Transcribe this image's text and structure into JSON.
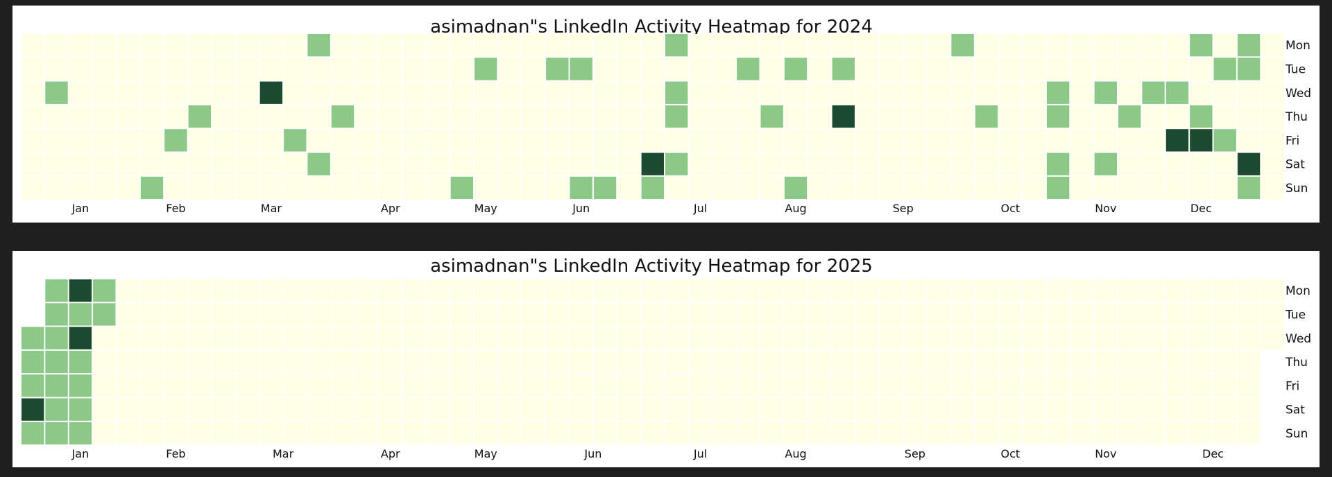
{
  "chart_data": [
    {
      "type": "heatmap",
      "title": "asimadnan\"s LinkedIn Activity Heatmap for 2024",
      "year": 2024,
      "day_labels": [
        "Mon",
        "Tue",
        "Wed",
        "Thu",
        "Fri",
        "Sat",
        "Sun"
      ],
      "month_labels": [
        {
          "label": "Jan",
          "week": 2
        },
        {
          "label": "Feb",
          "week": 6
        },
        {
          "label": "Mar",
          "week": 10
        },
        {
          "label": "Apr",
          "week": 15
        },
        {
          "label": "May",
          "week": 19
        },
        {
          "label": "Jun",
          "week": 23
        },
        {
          "label": "Jul",
          "week": 28
        },
        {
          "label": "Aug",
          "week": 32
        },
        {
          "label": "Sep",
          "week": 36.5
        },
        {
          "label": "Oct",
          "week": 41
        },
        {
          "label": "Nov",
          "week": 45
        },
        {
          "label": "Dec",
          "week": 49
        }
      ],
      "weeks": 53,
      "first_week_start_row": 0,
      "last_week_end_row": 6,
      "levels": {
        "0": "#ffffe5",
        "1": "#8cc887",
        "2": "#1b4a2e"
      },
      "cells": [
        {
          "week": 12,
          "day": "Mon",
          "level": 1
        },
        {
          "week": 27,
          "day": "Mon",
          "level": 1
        },
        {
          "week": 39,
          "day": "Mon",
          "level": 1
        },
        {
          "week": 49,
          "day": "Mon",
          "level": 1
        },
        {
          "week": 51,
          "day": "Mon",
          "level": 1
        },
        {
          "week": 19,
          "day": "Tue",
          "level": 1
        },
        {
          "week": 22,
          "day": "Tue",
          "level": 1
        },
        {
          "week": 23,
          "day": "Tue",
          "level": 1
        },
        {
          "week": 30,
          "day": "Tue",
          "level": 1
        },
        {
          "week": 32,
          "day": "Tue",
          "level": 1
        },
        {
          "week": 34,
          "day": "Tue",
          "level": 1
        },
        {
          "week": 50,
          "day": "Tue",
          "level": 1
        },
        {
          "week": 51,
          "day": "Tue",
          "level": 1
        },
        {
          "week": 1,
          "day": "Wed",
          "level": 1
        },
        {
          "week": 10,
          "day": "Wed",
          "level": 2
        },
        {
          "week": 27,
          "day": "Wed",
          "level": 1
        },
        {
          "week": 43,
          "day": "Wed",
          "level": 1
        },
        {
          "week": 45,
          "day": "Wed",
          "level": 1
        },
        {
          "week": 47,
          "day": "Wed",
          "level": 1
        },
        {
          "week": 48,
          "day": "Wed",
          "level": 1
        },
        {
          "week": 7,
          "day": "Thu",
          "level": 1
        },
        {
          "week": 13,
          "day": "Thu",
          "level": 1
        },
        {
          "week": 27,
          "day": "Thu",
          "level": 1
        },
        {
          "week": 31,
          "day": "Thu",
          "level": 1
        },
        {
          "week": 34,
          "day": "Thu",
          "level": 2
        },
        {
          "week": 40,
          "day": "Thu",
          "level": 1
        },
        {
          "week": 43,
          "day": "Thu",
          "level": 1
        },
        {
          "week": 46,
          "day": "Thu",
          "level": 1
        },
        {
          "week": 49,
          "day": "Thu",
          "level": 1
        },
        {
          "week": 6,
          "day": "Fri",
          "level": 1
        },
        {
          "week": 11,
          "day": "Fri",
          "level": 1
        },
        {
          "week": 48,
          "day": "Fri",
          "level": 2
        },
        {
          "week": 49,
          "day": "Fri",
          "level": 2
        },
        {
          "week": 50,
          "day": "Fri",
          "level": 1
        },
        {
          "week": 12,
          "day": "Sat",
          "level": 1
        },
        {
          "week": 26,
          "day": "Sat",
          "level": 2
        },
        {
          "week": 27,
          "day": "Sat",
          "level": 1
        },
        {
          "week": 43,
          "day": "Sat",
          "level": 1
        },
        {
          "week": 45,
          "day": "Sat",
          "level": 1
        },
        {
          "week": 51,
          "day": "Sat",
          "level": 2
        },
        {
          "week": 5,
          "day": "Sun",
          "level": 1
        },
        {
          "week": 18,
          "day": "Sun",
          "level": 1
        },
        {
          "week": 23,
          "day": "Sun",
          "level": 1
        },
        {
          "week": 24,
          "day": "Sun",
          "level": 1
        },
        {
          "week": 26,
          "day": "Sun",
          "level": 1
        },
        {
          "week": 32,
          "day": "Sun",
          "level": 1
        },
        {
          "week": 43,
          "day": "Sun",
          "level": 1
        },
        {
          "week": 51,
          "day": "Sun",
          "level": 1
        }
      ]
    },
    {
      "type": "heatmap",
      "title": "asimadnan\"s LinkedIn Activity Heatmap for 2025",
      "year": 2025,
      "day_labels": [
        "Mon",
        "Tue",
        "Wed",
        "Thu",
        "Fri",
        "Sat",
        "Sun"
      ],
      "month_labels": [
        {
          "label": "Jan",
          "week": 2
        },
        {
          "label": "Feb",
          "week": 6
        },
        {
          "label": "Mar",
          "week": 10.5
        },
        {
          "label": "Apr",
          "week": 15
        },
        {
          "label": "May",
          "week": 19
        },
        {
          "label": "Jun",
          "week": 23.5
        },
        {
          "label": "Jul",
          "week": 28
        },
        {
          "label": "Aug",
          "week": 32
        },
        {
          "label": "Sep",
          "week": 37
        },
        {
          "label": "Oct",
          "week": 41
        },
        {
          "label": "Nov",
          "week": 45
        },
        {
          "label": "Dec",
          "week": 49.5
        }
      ],
      "weeks": 53,
      "first_week_start_row": 2,
      "last_week_end_row": 2,
      "levels": {
        "0": "#ffffe5",
        "1": "#8cc887",
        "2": "#1b4a2e"
      },
      "cells": [
        {
          "week": 1,
          "day": "Mon",
          "level": 1
        },
        {
          "week": 2,
          "day": "Mon",
          "level": 2
        },
        {
          "week": 3,
          "day": "Mon",
          "level": 1
        },
        {
          "week": 1,
          "day": "Tue",
          "level": 1
        },
        {
          "week": 2,
          "day": "Tue",
          "level": 1
        },
        {
          "week": 3,
          "day": "Tue",
          "level": 1
        },
        {
          "week": 0,
          "day": "Wed",
          "level": 1
        },
        {
          "week": 1,
          "day": "Wed",
          "level": 1
        },
        {
          "week": 2,
          "day": "Wed",
          "level": 2
        },
        {
          "week": 0,
          "day": "Thu",
          "level": 1
        },
        {
          "week": 1,
          "day": "Thu",
          "level": 1
        },
        {
          "week": 2,
          "day": "Thu",
          "level": 1
        },
        {
          "week": 0,
          "day": "Fri",
          "level": 1
        },
        {
          "week": 1,
          "day": "Fri",
          "level": 1
        },
        {
          "week": 2,
          "day": "Fri",
          "level": 1
        },
        {
          "week": 0,
          "day": "Sat",
          "level": 2
        },
        {
          "week": 1,
          "day": "Sat",
          "level": 1
        },
        {
          "week": 2,
          "day": "Sat",
          "level": 1
        },
        {
          "week": 0,
          "day": "Sun",
          "level": 1
        },
        {
          "week": 1,
          "day": "Sun",
          "level": 1
        },
        {
          "week": 2,
          "day": "Sun",
          "level": 1
        }
      ]
    }
  ]
}
